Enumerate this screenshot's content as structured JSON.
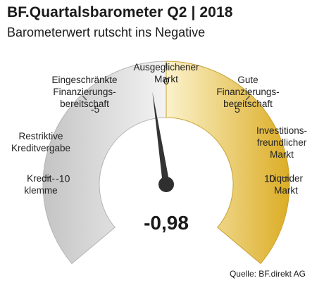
{
  "header": {
    "title": "BF.Quartalsbarometer Q2 | 2018",
    "subtitle": "Barometerwert rutscht ins Negative"
  },
  "footer": {
    "source": "Quelle: BF.direkt AG"
  },
  "chart_data": {
    "type": "gauge",
    "min": -15,
    "max": 15,
    "value": -0.98,
    "value_label": "-0,98",
    "ticks": [
      {
        "value": -10,
        "label": "-10"
      },
      {
        "value": -5,
        "label": "-5"
      },
      {
        "value": 0,
        "label": "0"
      },
      {
        "value": 5,
        "label": "5"
      },
      {
        "value": 10,
        "label": "10"
      }
    ],
    "zones": [
      {
        "label_lines": [
          "Kredit-",
          "klemme"
        ]
      },
      {
        "label_lines": [
          "Restriktive",
          "Kreditvergabe"
        ]
      },
      {
        "label_lines": [
          "Eingeschränkte",
          "Finanzierungs-",
          "bereitschaft"
        ]
      },
      {
        "label_lines": [
          "Ausgeglichener",
          "Markt"
        ]
      },
      {
        "label_lines": [
          "Gute",
          "Finanzierungs-",
          "bereitschaft"
        ]
      },
      {
        "label_lines": [
          "Investitions-",
          "freundlicher",
          "Markt"
        ]
      },
      {
        "label_lines": [
          "Liquider",
          "Markt"
        ]
      }
    ],
    "colors": {
      "negative": "#d9d9d9",
      "positive": "#e9c24a",
      "needle": "#333333"
    }
  }
}
